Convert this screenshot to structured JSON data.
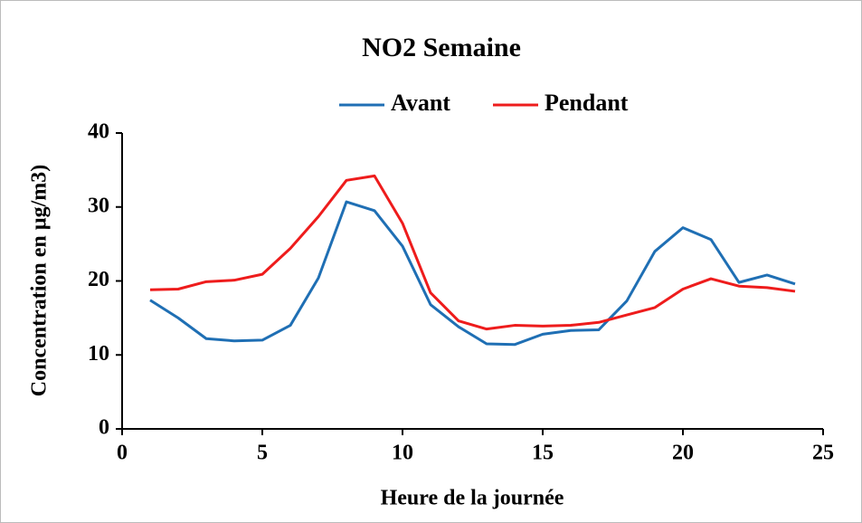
{
  "chart_data": {
    "type": "line",
    "title": "NO2 Semaine",
    "x_label": "Heure de la journée",
    "y_label": "Concentration en µg/m3)",
    "x": [
      1,
      2,
      3,
      4,
      5,
      6,
      7,
      8,
      9,
      10,
      11,
      12,
      13,
      14,
      15,
      16,
      17,
      18,
      19,
      20,
      21,
      22,
      23,
      24
    ],
    "series": [
      {
        "name": "Avant",
        "color": "#1f6fb4",
        "values": [
          17.4,
          15.0,
          12.2,
          11.9,
          12.0,
          14.0,
          20.4,
          30.7,
          29.5,
          24.7,
          16.8,
          13.8,
          11.5,
          11.4,
          12.8,
          13.3,
          13.4,
          17.3,
          24.0,
          27.2,
          25.6,
          19.8,
          20.8,
          19.6
        ]
      },
      {
        "name": "Pendant",
        "color": "#ee1c1c",
        "values": [
          18.8,
          18.9,
          19.9,
          20.1,
          20.9,
          24.4,
          28.7,
          33.6,
          34.2,
          27.8,
          18.4,
          14.6,
          13.5,
          14.0,
          13.9,
          14.0,
          14.4,
          15.4,
          16.4,
          18.9,
          20.3,
          19.3,
          19.1,
          18.6
        ]
      }
    ],
    "xlim": [
      0,
      25
    ],
    "xticks": [
      0,
      5,
      10,
      15,
      20,
      25
    ],
    "ylim": [
      0,
      40
    ],
    "yticks": [
      0,
      10,
      20,
      30,
      40
    ],
    "legend": "top",
    "grid": false
  }
}
